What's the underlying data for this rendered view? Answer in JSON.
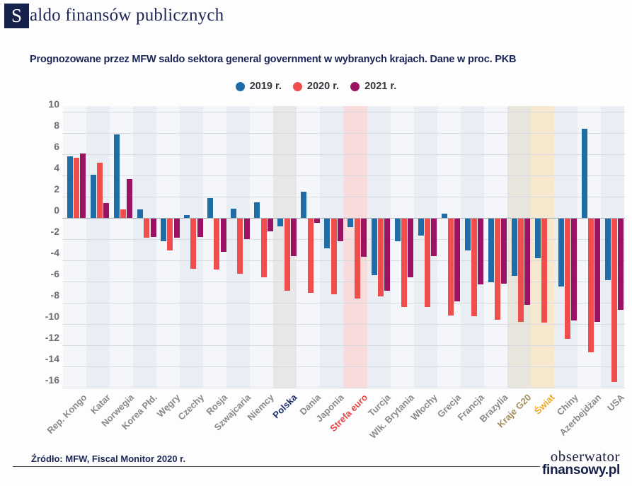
{
  "header": {
    "title_initial": "S",
    "title_rest": "aldo finansów publicznych",
    "subtitle": "Prognozowane przez MFW saldo sektora general government w wybranych krajach. Dane w proc. PKB"
  },
  "legend": [
    {
      "label": "2019 r.",
      "color": "#1e6da6"
    },
    {
      "label": "2020 r.",
      "color": "#ef4e4c"
    },
    {
      "label": "2021 r.",
      "color": "#9c1263"
    }
  ],
  "chart_data": {
    "type": "bar",
    "title": "Saldo finansów publicznych",
    "subtitle": "Prognozowane przez MFW saldo sektora general government w wybranych krajach. Dane w proc. PKB",
    "ylabel": "",
    "xlabel": "",
    "ylim": [
      -16,
      10
    ],
    "ytick_step": 2,
    "grid": true,
    "legend_position": "top-center",
    "categories": [
      "Rep. Kongo",
      "Katar",
      "Norwegia",
      "Korea Płd.",
      "Węgry",
      "Czechy",
      "Rosja",
      "Szwajcaria",
      "Niemcy",
      "Polska",
      "Dania",
      "Japonia",
      "Strefa euro",
      "Turcja",
      "Wlk. Brytania",
      "Włochy",
      "Grecja",
      "Francja",
      "Brazylia",
      "Kraje G20",
      "Świat",
      "Chiny",
      "Azerbejdżan",
      "USA"
    ],
    "series": [
      {
        "name": "2019 r.",
        "color": "#1e6da6",
        "values": [
          5.8,
          4.1,
          7.9,
          0.8,
          -2.1,
          0.3,
          1.9,
          0.9,
          1.5,
          -0.7,
          2.5,
          -2.8,
          -0.8,
          -5.3,
          -2.1,
          -1.6,
          0.4,
          -3.0,
          -6.0,
          -5.4,
          -3.7,
          -6.4,
          8.4,
          -5.8
        ]
      },
      {
        "name": "2020 r.",
        "color": "#ef4e4c",
        "values": [
          5.7,
          5.2,
          0.8,
          -1.8,
          -3.0,
          -4.7,
          -4.8,
          -5.2,
          -5.5,
          -6.8,
          -7.0,
          -7.1,
          -7.5,
          -7.3,
          -8.3,
          -8.3,
          -9.1,
          -9.2,
          -9.5,
          -9.7,
          -9.8,
          -11.3,
          -12.6,
          -15.4
        ]
      },
      {
        "name": "2021 r.",
        "color": "#9c1263",
        "values": [
          6.1,
          1.4,
          3.7,
          -1.7,
          -1.8,
          -1.7,
          -3.1,
          -1.9,
          -1.2,
          -3.5,
          -0.4,
          -2.1,
          -3.6,
          -6.8,
          -5.5,
          -3.5,
          -7.8,
          -6.2,
          -6.1,
          -8.1,
          null,
          -9.6,
          -9.7,
          -8.6
        ]
      }
    ],
    "column_band_colors": {
      "even": "#f4f6fa",
      "odd": "#e9edf4"
    },
    "highlighted_categories": {
      "Polska": "#e7e7e7",
      "Strefa euro": "#f8dcdc",
      "Kraje G20": "#e8e5dd",
      "Świat": "#f6e8cc"
    },
    "category_label_colors": {
      "default": "#87898c",
      "Polska": "#1b2a6b",
      "Strefa euro": "#e84444",
      "Kraje G20": "#a28e5e",
      "Świat": "#efa820"
    }
  },
  "footer": {
    "source": "Źródło: MFW, Fiscal Monitor 2020 r.",
    "logo_line1": "obserwator",
    "logo_line2": "finansowy.pl"
  }
}
